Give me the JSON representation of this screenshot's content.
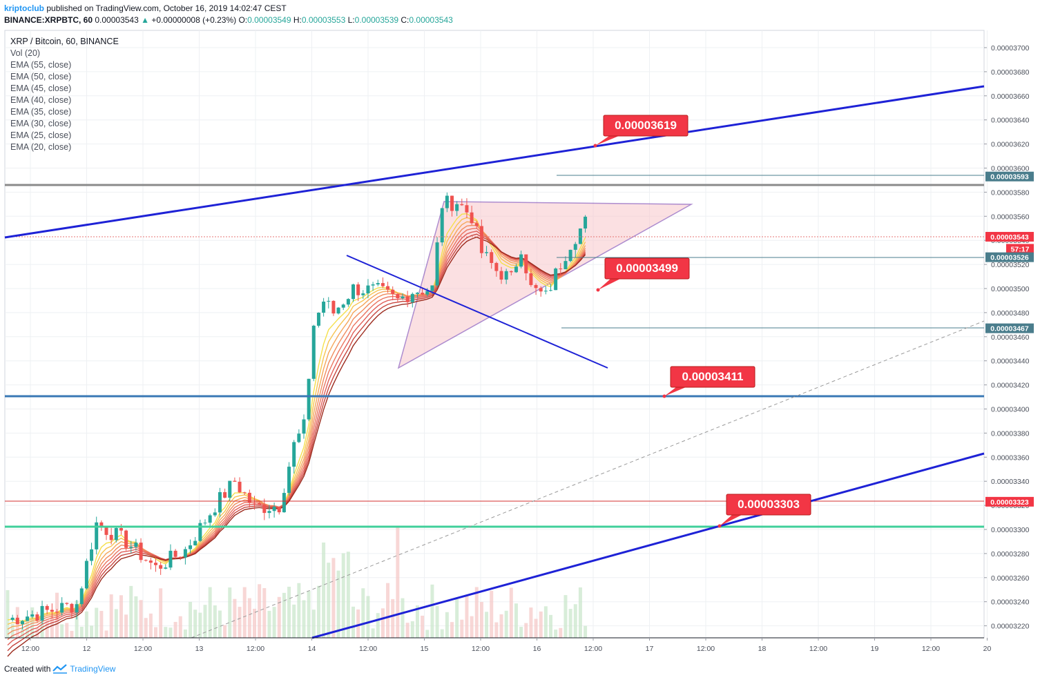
{
  "header": {
    "user": "kriptoclub",
    "published_text": "published on TradingView.com, October 16, 2019 14:02:47 CEST",
    "symbol": "BINANCE:XRPBTC, 60",
    "last": "0.00003543",
    "arrow": "▲",
    "change": "+0.00000008 (+0.23%)",
    "o_label": "O:",
    "o": "0.00003549",
    "h_label": "H:",
    "h": "0.00003553",
    "l_label": "L:",
    "l": "0.00003539",
    "c_label": "C:",
    "c": "0.00003543"
  },
  "legend": {
    "title": "XRP / Bitcoin, 60, BINANCE",
    "items": [
      "Vol (20)",
      "EMA (55, close)",
      "EMA (50, close)",
      "EMA (45, close)",
      "EMA (40, close)",
      "EMA (35, close)",
      "EMA (30, close)",
      "EMA (25, close)",
      "EMA (20, close)"
    ]
  },
  "footer": {
    "created_with": "Created with",
    "brand": "TradingView",
    "logo_icon": "tradingview-logo-icon"
  },
  "colors": {
    "up": "#26a69a",
    "down": "#ef5350",
    "trend_blue": "#1e22d6",
    "label_red": "#f23645",
    "gray_line": "#8a8a8a",
    "steel_line": "#3a78b5",
    "green_line": "#3fcf9a",
    "red_line": "#d32f2f",
    "axis_badge_teal": "#4a7d8c",
    "axis_badge_red": "#f23645",
    "triangle_fill": "#f8c8cc",
    "triangle_stroke": "#6b2fa8"
  },
  "chart_data": {
    "type": "candlestick",
    "y_axis_ticks": [
      "0.00003700",
      "0.00003680",
      "0.00003660",
      "0.00003640",
      "0.00003620",
      "0.00003600",
      "0.00003580",
      "0.00003560",
      "0.00003540",
      "0.00003520",
      "0.00003500",
      "0.00003480",
      "0.00003460",
      "0.00003440",
      "0.00003420",
      "0.00003400",
      "0.00003380",
      "0.00003360",
      "0.00003340",
      "0.00003320",
      "0.00003300",
      "0.00003280",
      "0.00003260",
      "0.00003240",
      "0.00003220"
    ],
    "x_axis_ticks": [
      "12:00",
      "12",
      "12:00",
      "13",
      "12:00",
      "14",
      "12:00",
      "15",
      "12:00",
      "16",
      "12:00",
      "17",
      "12:00",
      "18",
      "12:00",
      "19",
      "12:00",
      "20"
    ],
    "ylim": [
      3.21e-05,
      3.72e-05
    ],
    "axis_badges": [
      {
        "label": "0.00003593",
        "value": 3.593e-05,
        "style": "teal"
      },
      {
        "label": "0.00003543",
        "value": 3.543e-05,
        "style": "red"
      },
      {
        "label": "57:17",
        "value": 3.533e-05,
        "style": "red"
      },
      {
        "label": "0.00003526",
        "value": 3.526e-05,
        "style": "teal"
      },
      {
        "label": "0.00003467",
        "value": 3.467e-05,
        "style": "teal"
      },
      {
        "label": "0.00003323",
        "value": 3.323e-05,
        "style": "red"
      }
    ],
    "callouts": [
      "0.00003619",
      "0.00003499",
      "0.00003411",
      "0.00003303"
    ],
    "horizontal_levels": [
      {
        "name": "resistance-gray",
        "value": 3.585e-05
      },
      {
        "name": "support-steel",
        "value": 3.411e-05
      },
      {
        "name": "support-green",
        "value": 3.302e-05
      },
      {
        "name": "support-red",
        "value": 3.323e-05
      },
      {
        "name": "current-price",
        "value": 3.543e-05
      }
    ],
    "pattern": "ascending triangle",
    "last_close": 3.543e-05
  }
}
